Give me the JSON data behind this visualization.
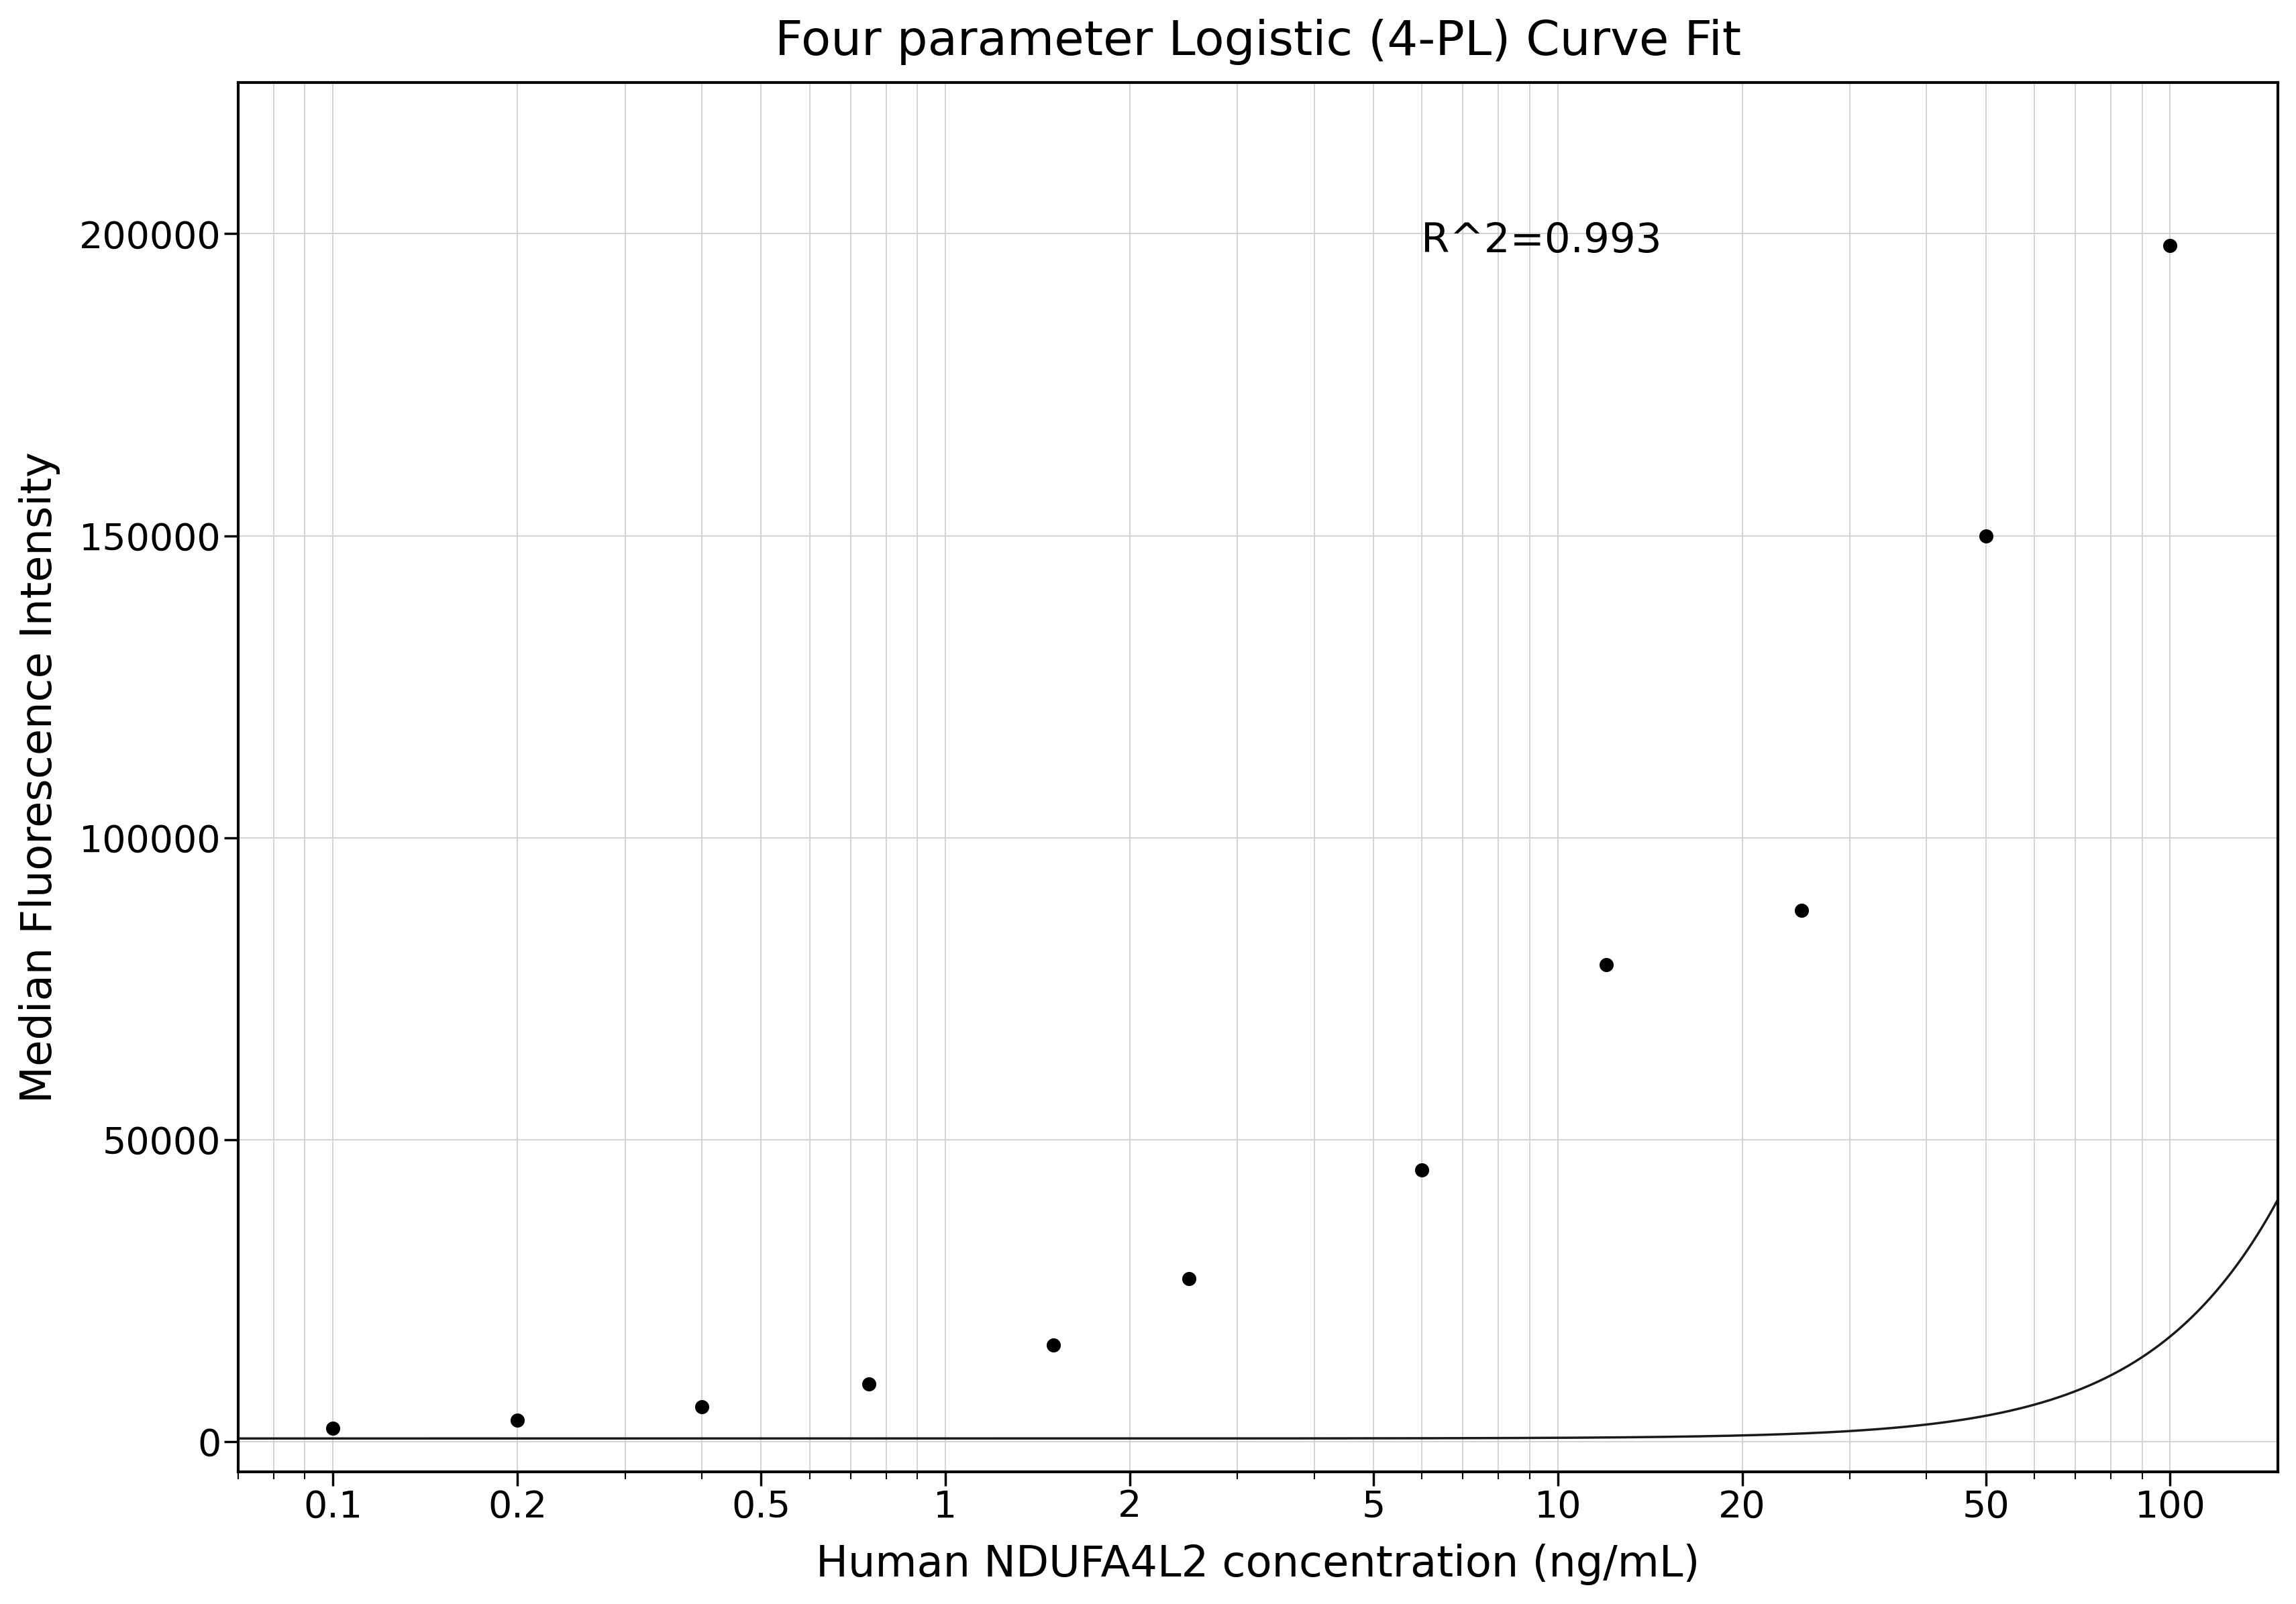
{
  "title": "Four parameter Logistic (4-PL) Curve Fit",
  "xlabel": "Human NDUFA4L2 concentration (ng/mL)",
  "ylabel": "Median Fluorescence Intensity",
  "r_squared": "R^2=0.993",
  "scatter_x": [
    0.1,
    0.2,
    0.4,
    0.75,
    1.5,
    2.5,
    6.0,
    12.0,
    25.0,
    50.0,
    100.0
  ],
  "scatter_y": [
    2200,
    3500,
    5800,
    9500,
    16000,
    27000,
    45000,
    79000,
    88000,
    150000,
    198000
  ],
  "xscale": "log",
  "xlim": [
    0.07,
    150
  ],
  "ylim": [
    -5000,
    225000
  ],
  "xticks": [
    0.1,
    0.2,
    0.5,
    1,
    2,
    5,
    10,
    20,
    50,
    100
  ],
  "xtick_labels": [
    "0.1",
    "0.2",
    "0.5",
    "1",
    "2",
    "5",
    "10",
    "20",
    "50",
    "100"
  ],
  "yticks": [
    0,
    50000,
    100000,
    150000,
    200000
  ],
  "ytick_labels": [
    "0",
    "50000",
    "100000",
    "150000",
    "200000"
  ],
  "curve_color": "#1a1a1a",
  "scatter_color": "#000000",
  "background_color": "#ffffff",
  "grid_color": "#cccccc",
  "title_fontsize": 52,
  "label_fontsize": 46,
  "tick_fontsize": 40,
  "annotation_fontsize": 44,
  "4pl_A": 500,
  "4pl_B": 2.2,
  "4pl_C": 500.0,
  "4pl_D": 600000
}
